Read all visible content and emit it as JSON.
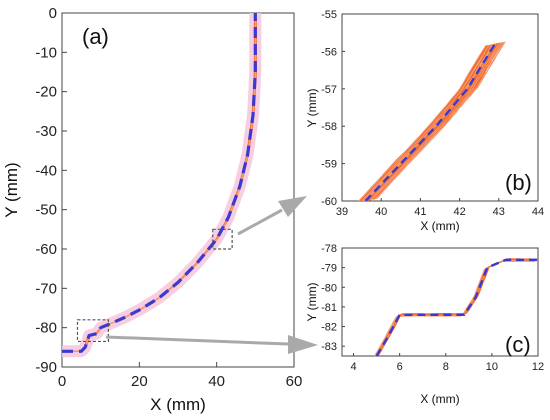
{
  "colors": {
    "trajectories": "#f0692a",
    "trajectories_light": "#f7a07a",
    "halo": "#f6c6dc",
    "reference": "#3a3ad0",
    "zoom_box": "#555555",
    "arrow": "#a9a9a9"
  },
  "chart_data": [
    {
      "type": "line",
      "panel_label": "(a)",
      "xlabel": "X (mm)",
      "ylabel": "Y (mm)",
      "xlim": [
        0,
        60
      ],
      "ylim": [
        -90,
        0
      ],
      "xticks": [
        0,
        20,
        40,
        60
      ],
      "yticks": [
        0,
        -10,
        -20,
        -30,
        -40,
        -50,
        -60,
        -70,
        -80,
        -90
      ],
      "series": [
        {
          "role": "reference",
          "style": "dashed",
          "x": [
            0,
            5,
            6,
            7,
            9,
            10,
            12,
            16,
            20,
            25,
            30,
            35,
            40,
            43,
            46,
            48,
            49.4,
            50,
            50,
            50
          ],
          "y": [
            -86,
            -86,
            -85,
            -82,
            -81.5,
            -80,
            -79.2,
            -77.5,
            -75.5,
            -72.5,
            -68.5,
            -63.5,
            -57.5,
            -52,
            -44,
            -36,
            -26,
            -15,
            -5,
            0
          ]
        }
      ],
      "zoom_boxes": [
        {
          "xlim": [
            39,
            44
          ],
          "ylim": [
            -60,
            -55
          ]
        },
        {
          "xlim": [
            4,
            12
          ],
          "ylim": [
            -83.5,
            -78
          ]
        }
      ]
    },
    {
      "type": "line",
      "panel_label": "(b)",
      "xlabel": "X (mm)",
      "ylabel": "Y (mm)",
      "xlim": [
        39,
        44
      ],
      "ylim": [
        -60,
        -55
      ],
      "xticks": [
        39,
        40,
        41,
        42,
        43,
        44
      ],
      "yticks": [
        -55,
        -56,
        -57,
        -58,
        -59,
        -60
      ],
      "series": [
        {
          "role": "reference",
          "style": "dashed",
          "x": [
            39.6,
            40.5,
            41.4,
            42.2,
            42.9
          ],
          "y": [
            -60,
            -59,
            -58,
            -57,
            -55.8
          ]
        }
      ]
    },
    {
      "type": "line",
      "panel_label": "(c)",
      "xlabel": "X (mm)",
      "ylabel": "Y (mm)",
      "xlim": [
        3.5,
        12
      ],
      "ylim": [
        -83.5,
        -78
      ],
      "xticks": [
        4,
        6,
        8,
        10,
        12
      ],
      "yticks": [
        -78,
        -79,
        -80,
        -81,
        -82,
        -83
      ],
      "series": [
        {
          "role": "reference",
          "style": "dashed",
          "x": [
            5,
            5.5,
            6,
            7,
            8,
            8.8,
            9.3,
            9.8,
            10.6,
            12
          ],
          "y": [
            -83.5,
            -82.5,
            -81.4,
            -81.4,
            -81.4,
            -81.4,
            -80.5,
            -79,
            -78.6,
            -78.6
          ]
        }
      ]
    }
  ]
}
